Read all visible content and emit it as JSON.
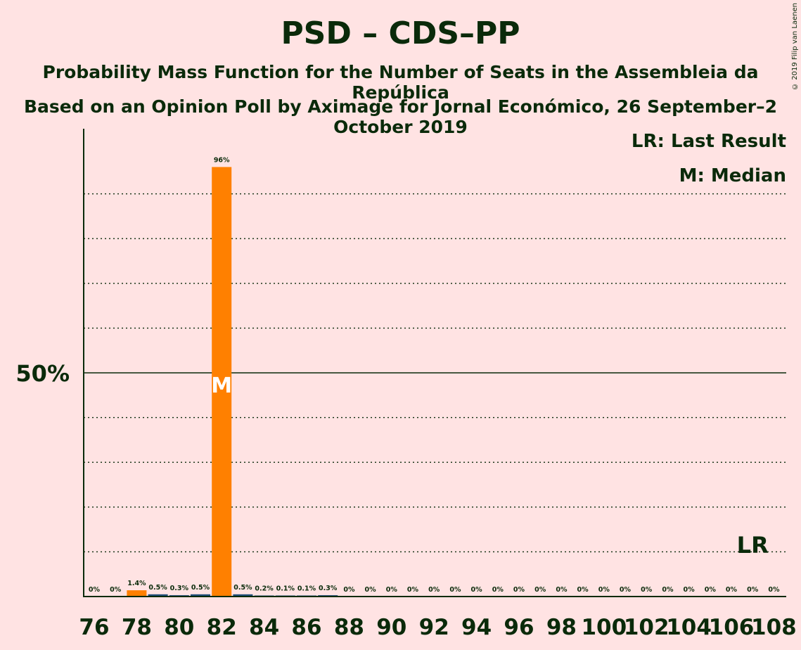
{
  "title": "PSD – CDS–PP",
  "subtitle": "Probability Mass Function for the Number of Seats in the Assembleia da República",
  "subtitle2": "Based on an Opinion Poll by Aximage for Jornal Económico, 26 September–2 October 2019",
  "copyright": "© 2019 Filip van Laenen",
  "legend": {
    "last_result": "LR: Last Result",
    "median": "M: Median"
  },
  "colors": {
    "background": "#ffe3e3",
    "bar_main": "#ff8000",
    "bar_secondary": "#1f4e79",
    "text": "#0a2a0a"
  },
  "chart_data": {
    "type": "bar",
    "categories": [
      76,
      77,
      78,
      79,
      80,
      81,
      82,
      83,
      84,
      85,
      86,
      87,
      88,
      89,
      90,
      91,
      92,
      93,
      94,
      95,
      96,
      97,
      98,
      99,
      100,
      101,
      102,
      103,
      104,
      105,
      106,
      107,
      108
    ],
    "values": [
      0,
      0,
      1.4,
      0.5,
      0.3,
      0.5,
      96,
      0.5,
      0.2,
      0.1,
      0.1,
      0.3,
      0,
      0,
      0,
      0,
      0,
      0,
      0,
      0,
      0,
      0,
      0,
      0,
      0,
      0,
      0,
      0,
      0,
      0,
      0,
      0,
      0
    ],
    "labels": [
      "0%",
      "0%",
      "1.4%",
      "0.5%",
      "0.3%",
      "0.5%",
      "96%",
      "0.5%",
      "0.2%",
      "0.1%",
      "0.1%",
      "0.3%",
      "0%",
      "0%",
      "0%",
      "0%",
      "0%",
      "0%",
      "0%",
      "0%",
      "0%",
      "0%",
      "0%",
      "0%",
      "0%",
      "0%",
      "0%",
      "0%",
      "0%",
      "0%",
      "0%",
      "0%",
      "0%"
    ],
    "x_ticks": [
      76,
      78,
      80,
      82,
      84,
      86,
      88,
      90,
      92,
      94,
      96,
      98,
      100,
      102,
      104,
      106,
      108
    ],
    "y_tick_label": "50%",
    "ylim": [
      0,
      105
    ],
    "gridlines": [
      10,
      20,
      30,
      40,
      60,
      70,
      80,
      90
    ],
    "median_seat": 82,
    "median_label": "M",
    "last_result_seat": 107,
    "last_result_label": "LR"
  }
}
